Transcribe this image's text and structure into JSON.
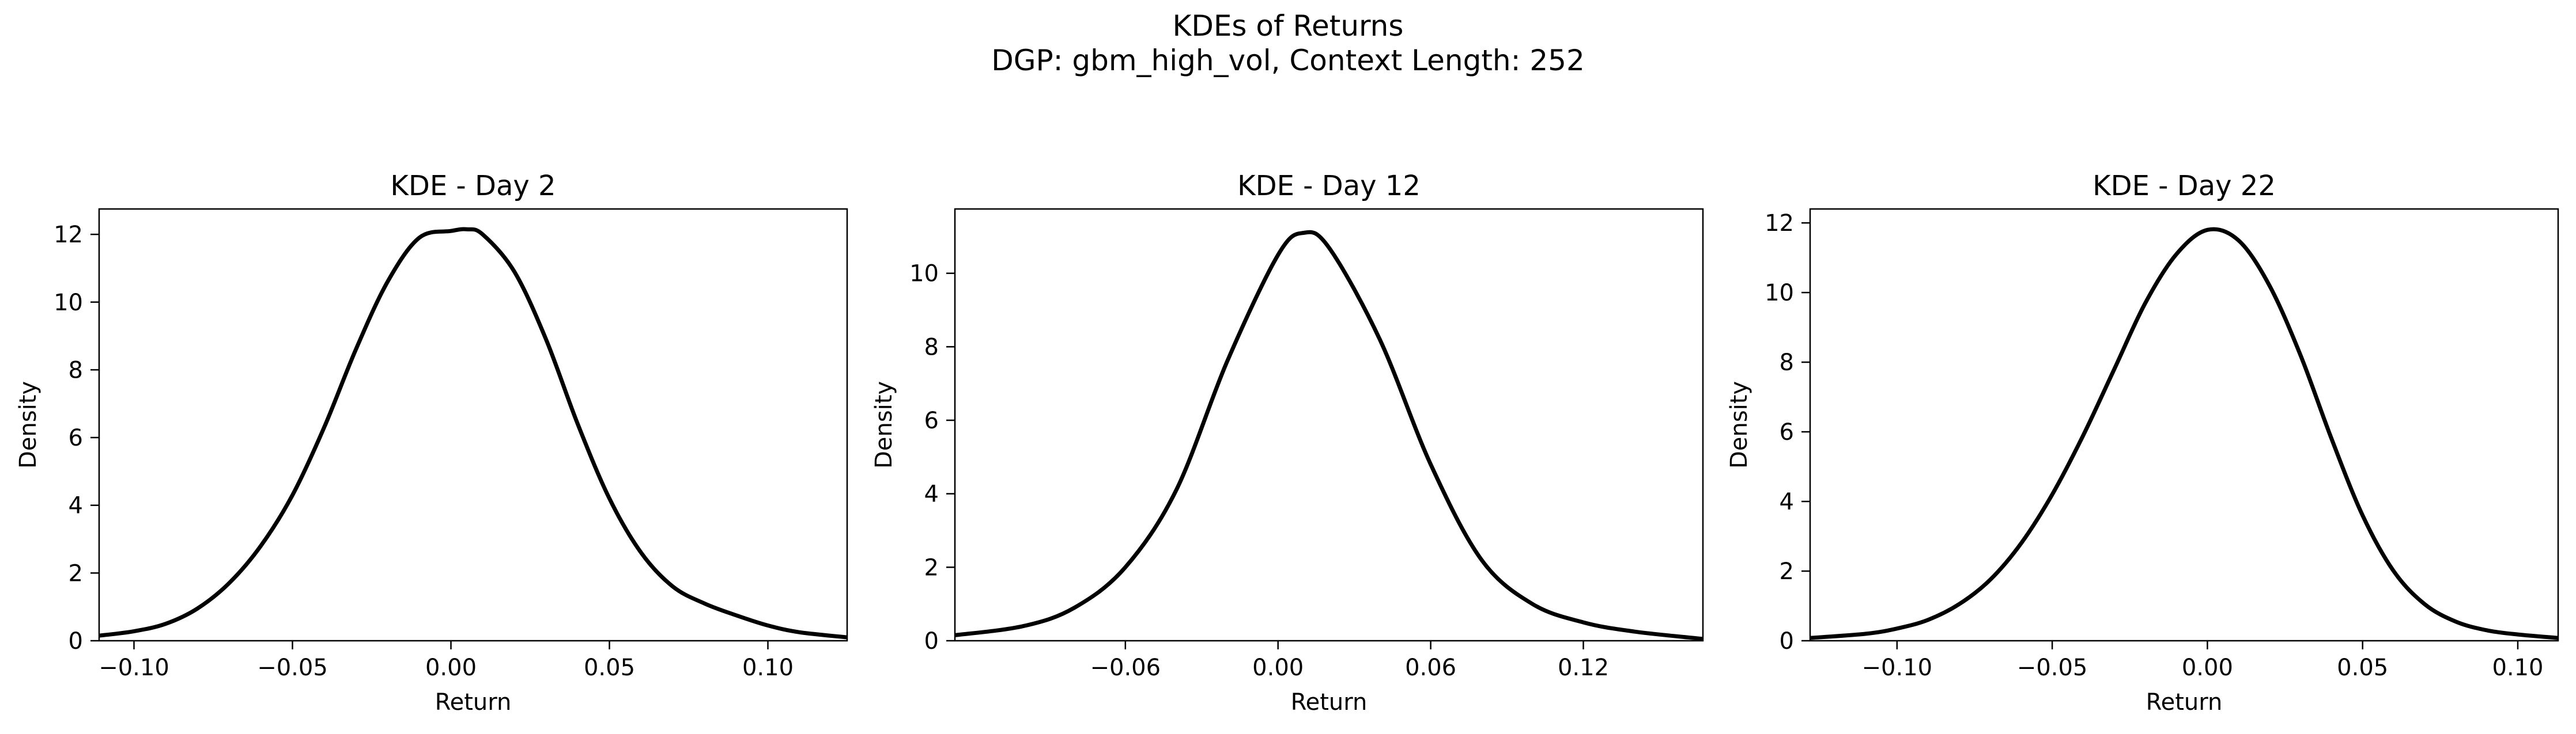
{
  "figure": {
    "suptitle_line1": "KDEs of Returns",
    "suptitle_line2": "DGP: gbm_high_vol, Context Length: 252"
  },
  "chart_data": [
    {
      "type": "line",
      "title": "KDE - Day 2",
      "xlabel": "Return",
      "ylabel": "Density",
      "xlim": [
        -0.111,
        0.125
      ],
      "ylim": [
        0,
        12.75
      ],
      "xticks": [
        -0.1,
        -0.05,
        0.0,
        0.05,
        0.1
      ],
      "xtick_labels": [
        "−0.10",
        "−0.05",
        "0.00",
        "0.05",
        "0.10"
      ],
      "yticks": [
        0,
        2,
        4,
        6,
        8,
        10,
        12
      ],
      "ytick_labels": [
        "0",
        "2",
        "4",
        "6",
        "8",
        "10",
        "12"
      ],
      "line_color": "#000000",
      "grid": false,
      "series": [
        {
          "x": [
            -0.111,
            -0.1,
            -0.09,
            -0.08,
            -0.07,
            -0.06,
            -0.05,
            -0.04,
            -0.03,
            -0.02,
            -0.01,
            0.0,
            0.005,
            0.01,
            0.02,
            0.03,
            0.04,
            0.05,
            0.06,
            0.07,
            0.08,
            0.09,
            0.1,
            0.11,
            0.125
          ],
          "y": [
            0.15,
            0.28,
            0.5,
            0.95,
            1.7,
            2.8,
            4.3,
            6.3,
            8.6,
            10.6,
            11.9,
            12.1,
            12.15,
            12.0,
            10.9,
            8.9,
            6.4,
            4.2,
            2.6,
            1.6,
            1.1,
            0.75,
            0.45,
            0.25,
            0.1
          ]
        }
      ]
    },
    {
      "type": "line",
      "title": "KDE - Day 12",
      "xlabel": "Return",
      "ylabel": "Density",
      "xlim": [
        -0.127,
        0.167
      ],
      "ylim": [
        0,
        11.75
      ],
      "xticks": [
        -0.06,
        0.0,
        0.06,
        0.12
      ],
      "xtick_labels": [
        "−0.06",
        "0.00",
        "0.06",
        "0.12"
      ],
      "yticks": [
        0,
        2,
        4,
        6,
        8,
        10
      ],
      "ytick_labels": [
        "0",
        "2",
        "4",
        "6",
        "8",
        "10"
      ],
      "line_color": "#000000",
      "grid": false,
      "series": [
        {
          "x": [
            -0.127,
            -0.1,
            -0.08,
            -0.06,
            -0.04,
            -0.02,
            0.0,
            0.01,
            0.02,
            0.04,
            0.06,
            0.08,
            0.1,
            0.12,
            0.14,
            0.167
          ],
          "y": [
            0.15,
            0.4,
            0.9,
            2.0,
            4.1,
            7.6,
            10.5,
            11.1,
            10.7,
            8.2,
            4.8,
            2.2,
            1.0,
            0.5,
            0.25,
            0.05
          ]
        }
      ]
    },
    {
      "type": "line",
      "title": "KDE - Day 22",
      "xlabel": "Return",
      "ylabel": "Density",
      "xlim": [
        -0.128,
        0.113
      ],
      "ylim": [
        0,
        12.4
      ],
      "xticks": [
        -0.1,
        -0.05,
        0.0,
        0.05,
        0.1
      ],
      "xtick_labels": [
        "−0.10",
        "−0.05",
        "0.00",
        "0.05",
        "0.10"
      ],
      "yticks": [
        0,
        2,
        4,
        6,
        8,
        10,
        12
      ],
      "ytick_labels": [
        "0",
        "2",
        "4",
        "6",
        "8",
        "10",
        "12"
      ],
      "line_color": "#000000",
      "grid": false,
      "series": [
        {
          "x": [
            -0.128,
            -0.11,
            -0.1,
            -0.09,
            -0.08,
            -0.07,
            -0.06,
            -0.05,
            -0.04,
            -0.03,
            -0.02,
            -0.01,
            0.0,
            0.01,
            0.02,
            0.03,
            0.04,
            0.05,
            0.06,
            0.07,
            0.08,
            0.09,
            0.1,
            0.113
          ],
          "y": [
            0.08,
            0.2,
            0.35,
            0.6,
            1.05,
            1.75,
            2.8,
            4.2,
            5.9,
            7.8,
            9.7,
            11.1,
            11.8,
            11.5,
            10.2,
            8.2,
            5.8,
            3.6,
            2.0,
            1.05,
            0.55,
            0.3,
            0.18,
            0.08
          ]
        }
      ]
    }
  ]
}
